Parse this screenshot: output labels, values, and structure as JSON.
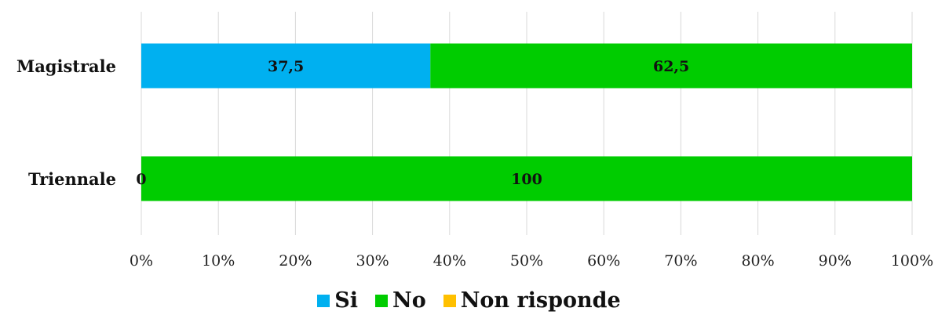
{
  "chart_data": {
    "type": "bar",
    "orientation": "horizontal",
    "stacked": "percent",
    "categories": [
      "Magistrale",
      "Triennale"
    ],
    "series": [
      {
        "name": "Si",
        "values": [
          37.5,
          0
        ],
        "color": "#00b0f0"
      },
      {
        "name": "No",
        "values": [
          62.5,
          100
        ],
        "color": "#00cc00"
      },
      {
        "name": "Non risponde",
        "values": [
          0,
          0
        ],
        "color": "#ffc000"
      }
    ],
    "data_labels": [
      {
        "category": "Magistrale",
        "series": "Si",
        "text": "37,5"
      },
      {
        "category": "Magistrale",
        "series": "No",
        "text": "62,5"
      },
      {
        "category": "Triennale",
        "series": "Si",
        "text": "0"
      },
      {
        "category": "Triennale",
        "series": "No",
        "text": "100"
      }
    ],
    "x_ticks": [
      "0%",
      "10%",
      "20%",
      "30%",
      "40%",
      "50%",
      "60%",
      "70%",
      "80%",
      "90%",
      "100%"
    ],
    "xlim": [
      0,
      100
    ],
    "grid": "vertical",
    "legend_position": "bottom",
    "title": "",
    "xlabel": "",
    "ylabel": ""
  }
}
